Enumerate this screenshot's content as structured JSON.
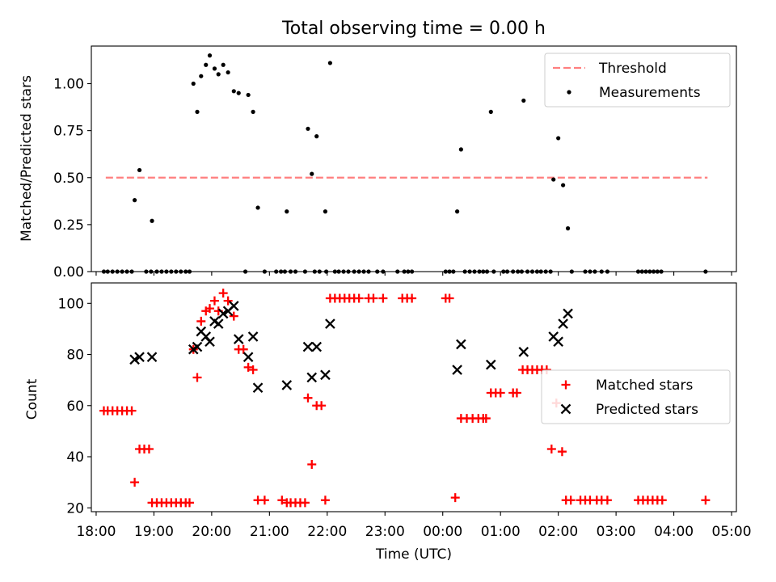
{
  "chart_data": [
    {
      "type": "scatter",
      "title": "Total observing time = 0.00 h",
      "xlabel": "",
      "ylabel": "Matched/Predicted stars",
      "xlim": [
        "17:55",
        "05:05"
      ],
      "ylim": [
        0,
        1.2
      ],
      "yticks": [
        "0.00",
        "0.25",
        "0.50",
        "0.75",
        "1.00"
      ],
      "legend_position": "top-right",
      "threshold": {
        "name": "Threshold",
        "value": 0.5,
        "x_start": "18:10",
        "x_end": "04:35",
        "color": "#ff7f7f",
        "style": "dashed"
      },
      "series": [
        {
          "name": "Measurements",
          "color": "#000000",
          "marker": "dot",
          "points": [
            [
              "18:08",
              0
            ],
            [
              "18:12",
              0
            ],
            [
              "18:17",
              0
            ],
            [
              "18:22",
              0
            ],
            [
              "18:27",
              0
            ],
            [
              "18:32",
              0
            ],
            [
              "18:37",
              0
            ],
            [
              "18:40",
              0.38
            ],
            [
              "18:45",
              0.54
            ],
            [
              "18:52",
              0
            ],
            [
              "18:57",
              0
            ],
            [
              "18:58",
              0.27
            ],
            [
              "19:03",
              0
            ],
            [
              "19:08",
              0
            ],
            [
              "19:13",
              0
            ],
            [
              "19:18",
              0
            ],
            [
              "19:23",
              0
            ],
            [
              "19:28",
              0
            ],
            [
              "19:33",
              0
            ],
            [
              "19:37",
              0
            ],
            [
              "19:41",
              1.0
            ],
            [
              "19:45",
              0.85
            ],
            [
              "19:49",
              1.04
            ],
            [
              "19:54",
              1.1
            ],
            [
              "19:58",
              1.15
            ],
            [
              "20:03",
              1.08
            ],
            [
              "20:07",
              1.05
            ],
            [
              "20:12",
              1.1
            ],
            [
              "20:17",
              1.06
            ],
            [
              "20:23",
              0.96
            ],
            [
              "20:28",
              0.95
            ],
            [
              "20:35",
              0
            ],
            [
              "20:38",
              0.94
            ],
            [
              "20:43",
              0.85
            ],
            [
              "20:48",
              0.34
            ],
            [
              "20:55",
              0
            ],
            [
              "21:07",
              0
            ],
            [
              "21:12",
              0
            ],
            [
              "21:16",
              0
            ],
            [
              "21:18",
              0.32
            ],
            [
              "21:22",
              0
            ],
            [
              "21:27",
              0
            ],
            [
              "21:37",
              0
            ],
            [
              "21:40",
              0.76
            ],
            [
              "21:44",
              0.52
            ],
            [
              "21:47",
              0
            ],
            [
              "21:49",
              0.72
            ],
            [
              "21:52",
              0
            ],
            [
              "21:58",
              0.32
            ],
            [
              "21:59",
              0
            ],
            [
              "22:03",
              1.11
            ],
            [
              "22:08",
              0
            ],
            [
              "22:12",
              0
            ],
            [
              "22:17",
              0
            ],
            [
              "22:22",
              0
            ],
            [
              "22:28",
              0
            ],
            [
              "22:33",
              0
            ],
            [
              "22:38",
              0
            ],
            [
              "22:43",
              0
            ],
            [
              "22:52",
              0
            ],
            [
              "22:58",
              0
            ],
            [
              "23:13",
              0
            ],
            [
              "23:20",
              0
            ],
            [
              "23:24",
              0
            ],
            [
              "23:28",
              0
            ],
            [
              "00:03",
              0
            ],
            [
              "00:07",
              0
            ],
            [
              "00:11",
              0
            ],
            [
              "00:15",
              0.32
            ],
            [
              "00:19",
              0.65
            ],
            [
              "00:23",
              0
            ],
            [
              "00:28",
              0
            ],
            [
              "00:33",
              0
            ],
            [
              "00:38",
              0
            ],
            [
              "00:42",
              0
            ],
            [
              "00:46",
              0
            ],
            [
              "00:50",
              0.85
            ],
            [
              "00:53",
              0
            ],
            [
              "01:03",
              0
            ],
            [
              "01:07",
              0
            ],
            [
              "01:13",
              0
            ],
            [
              "01:18",
              0
            ],
            [
              "01:22",
              0
            ],
            [
              "01:24",
              0.91
            ],
            [
              "01:28",
              0
            ],
            [
              "01:33",
              0
            ],
            [
              "01:38",
              0
            ],
            [
              "01:42",
              0
            ],
            [
              "01:47",
              0
            ],
            [
              "01:52",
              0
            ],
            [
              "01:55",
              0.49
            ],
            [
              "02:00",
              0.71
            ],
            [
              "02:05",
              0.46
            ],
            [
              "02:10",
              0.23
            ],
            [
              "02:14",
              0
            ],
            [
              "02:28",
              0
            ],
            [
              "02:33",
              0
            ],
            [
              "02:38",
              0
            ],
            [
              "02:45",
              0
            ],
            [
              "02:51",
              0
            ],
            [
              "03:23",
              0
            ],
            [
              "03:27",
              0
            ],
            [
              "03:31",
              0
            ],
            [
              "03:35",
              0
            ],
            [
              "03:39",
              0
            ],
            [
              "03:43",
              0
            ],
            [
              "03:47",
              0
            ],
            [
              "04:33",
              0
            ]
          ]
        }
      ]
    },
    {
      "type": "scatter",
      "title": "",
      "xlabel": "Time (UTC)",
      "ylabel": "Count",
      "xlim": [
        "17:55",
        "05:05"
      ],
      "ylim": [
        18.5,
        108
      ],
      "yticks": [
        "20",
        "40",
        "60",
        "80",
        "100"
      ],
      "xticks": [
        "18:00",
        "19:00",
        "20:00",
        "21:00",
        "22:00",
        "23:00",
        "00:00",
        "01:00",
        "02:00",
        "03:00",
        "04:00",
        "05:00"
      ],
      "legend_position": "center-right",
      "series": [
        {
          "name": "Matched stars",
          "color": "#ff0000",
          "marker": "plus",
          "points": [
            [
              "18:08",
              58
            ],
            [
              "18:12",
              58
            ],
            [
              "18:17",
              58
            ],
            [
              "18:22",
              58
            ],
            [
              "18:27",
              58
            ],
            [
              "18:32",
              58
            ],
            [
              "18:37",
              58
            ],
            [
              "18:40",
              30
            ],
            [
              "18:45",
              43
            ],
            [
              "18:50",
              43
            ],
            [
              "18:55",
              43
            ],
            [
              "18:58",
              22
            ],
            [
              "19:03",
              22
            ],
            [
              "19:08",
              22
            ],
            [
              "19:13",
              22
            ],
            [
              "19:18",
              22
            ],
            [
              "19:23",
              22
            ],
            [
              "19:28",
              22
            ],
            [
              "19:33",
              22
            ],
            [
              "19:37",
              22
            ],
            [
              "19:41",
              82
            ],
            [
              "19:45",
              71
            ],
            [
              "19:49",
              93
            ],
            [
              "19:54",
              97
            ],
            [
              "19:58",
              98
            ],
            [
              "20:03",
              101
            ],
            [
              "20:07",
              97
            ],
            [
              "20:12",
              104
            ],
            [
              "20:17",
              101
            ],
            [
              "20:23",
              95
            ],
            [
              "20:28",
              82
            ],
            [
              "20:33",
              82
            ],
            [
              "20:38",
              75
            ],
            [
              "20:43",
              74
            ],
            [
              "20:48",
              23
            ],
            [
              "20:55",
              23
            ],
            [
              "21:13",
              23
            ],
            [
              "21:18",
              22
            ],
            [
              "21:22",
              22
            ],
            [
              "21:27",
              22
            ],
            [
              "21:32",
              22
            ],
            [
              "21:37",
              22
            ],
            [
              "21:40",
              63
            ],
            [
              "21:44",
              37
            ],
            [
              "21:49",
              60
            ],
            [
              "21:54",
              60
            ],
            [
              "21:58",
              23
            ],
            [
              "22:03",
              102
            ],
            [
              "22:08",
              102
            ],
            [
              "22:13",
              102
            ],
            [
              "22:18",
              102
            ],
            [
              "22:23",
              102
            ],
            [
              "22:28",
              102
            ],
            [
              "22:33",
              102
            ],
            [
              "22:43",
              102
            ],
            [
              "22:48",
              102
            ],
            [
              "22:58",
              102
            ],
            [
              "23:18",
              102
            ],
            [
              "23:23",
              102
            ],
            [
              "23:28",
              102
            ],
            [
              "00:03",
              102
            ],
            [
              "00:07",
              102
            ],
            [
              "00:13",
              24
            ],
            [
              "00:19",
              55
            ],
            [
              "00:25",
              55
            ],
            [
              "00:31",
              55
            ],
            [
              "00:37",
              55
            ],
            [
              "00:42",
              55
            ],
            [
              "00:45",
              55
            ],
            [
              "00:50",
              65
            ],
            [
              "00:55",
              65
            ],
            [
              "01:00",
              65
            ],
            [
              "01:13",
              65
            ],
            [
              "01:17",
              65
            ],
            [
              "01:23",
              74
            ],
            [
              "01:28",
              74
            ],
            [
              "01:33",
              74
            ],
            [
              "01:38",
              74
            ],
            [
              "01:43",
              74
            ],
            [
              "01:48",
              74
            ],
            [
              "01:53",
              43
            ],
            [
              "01:58",
              61
            ],
            [
              "02:04",
              42
            ],
            [
              "02:08",
              23
            ],
            [
              "02:13",
              23
            ],
            [
              "02:23",
              23
            ],
            [
              "02:28",
              23
            ],
            [
              "02:33",
              23
            ],
            [
              "02:40",
              23
            ],
            [
              "02:45",
              23
            ],
            [
              "02:51",
              23
            ],
            [
              "03:23",
              23
            ],
            [
              "03:28",
              23
            ],
            [
              "03:33",
              23
            ],
            [
              "03:38",
              23
            ],
            [
              "03:43",
              23
            ],
            [
              "03:48",
              23
            ],
            [
              "04:33",
              23
            ]
          ]
        },
        {
          "name": "Predicted stars",
          "color": "#000000",
          "marker": "x",
          "points": [
            [
              "18:40",
              78
            ],
            [
              "18:45",
              79
            ],
            [
              "18:58",
              79
            ],
            [
              "19:41",
              82
            ],
            [
              "19:45",
              83
            ],
            [
              "19:49",
              89
            ],
            [
              "19:54",
              87
            ],
            [
              "19:58",
              85
            ],
            [
              "20:03",
              93
            ],
            [
              "20:07",
              92
            ],
            [
              "20:12",
              96
            ],
            [
              "20:17",
              97
            ],
            [
              "20:23",
              99
            ],
            [
              "20:28",
              86
            ],
            [
              "20:38",
              79
            ],
            [
              "20:43",
              87
            ],
            [
              "20:48",
              67
            ],
            [
              "21:18",
              68
            ],
            [
              "21:40",
              83
            ],
            [
              "21:44",
              71
            ],
            [
              "21:49",
              83
            ],
            [
              "21:58",
              72
            ],
            [
              "22:03",
              92
            ],
            [
              "00:15",
              74
            ],
            [
              "00:19",
              84
            ],
            [
              "00:50",
              76
            ],
            [
              "01:24",
              81
            ],
            [
              "01:55",
              87
            ],
            [
              "02:00",
              85
            ],
            [
              "02:05",
              92
            ],
            [
              "02:10",
              96
            ]
          ]
        }
      ]
    }
  ]
}
